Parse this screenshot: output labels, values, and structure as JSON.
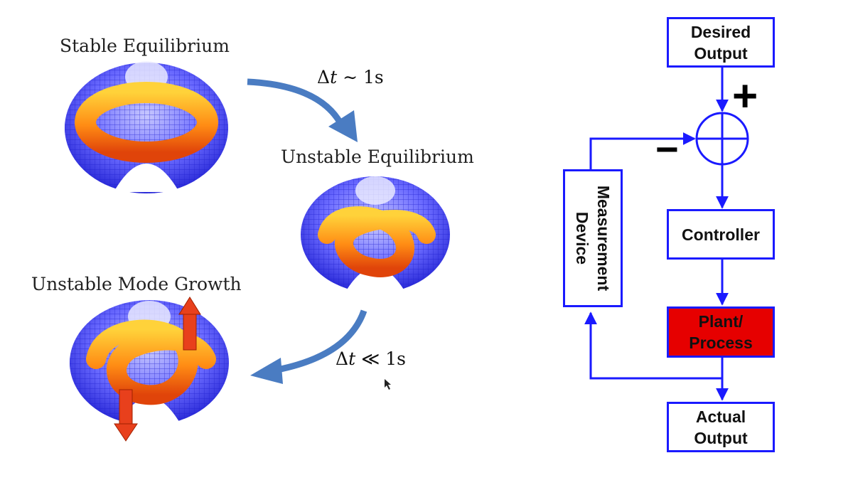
{
  "left_panel": {
    "stable_label": "Stable Equilibrium",
    "unstable_label": "Unstable Equilibrium",
    "growth_label": "Unstable Mode Growth",
    "dt1": {
      "symbol": "Δ",
      "var": "t",
      "relation": "∼",
      "value": "1s"
    },
    "dt2": {
      "symbol": "Δ",
      "var": "t",
      "relation": "≪",
      "value": "1s"
    }
  },
  "control_diagram": {
    "desired_output": [
      "Desired",
      "Output"
    ],
    "controller": "Controller",
    "plant_process": [
      "Plant/",
      "Process"
    ],
    "actual_output": [
      "Actual",
      "Output"
    ],
    "measurement_device": [
      "Measurement",
      "Device"
    ],
    "plus_sign": "+",
    "minus_sign": "−"
  },
  "colors": {
    "diagram_line": "#1a1aff",
    "plant_fill": "#e60000",
    "flow_arrow": "#4a7cc2",
    "growth_arrow": "#e8401c",
    "torus_inner": "#ff9a1a",
    "mesh": "#3a3aff"
  }
}
